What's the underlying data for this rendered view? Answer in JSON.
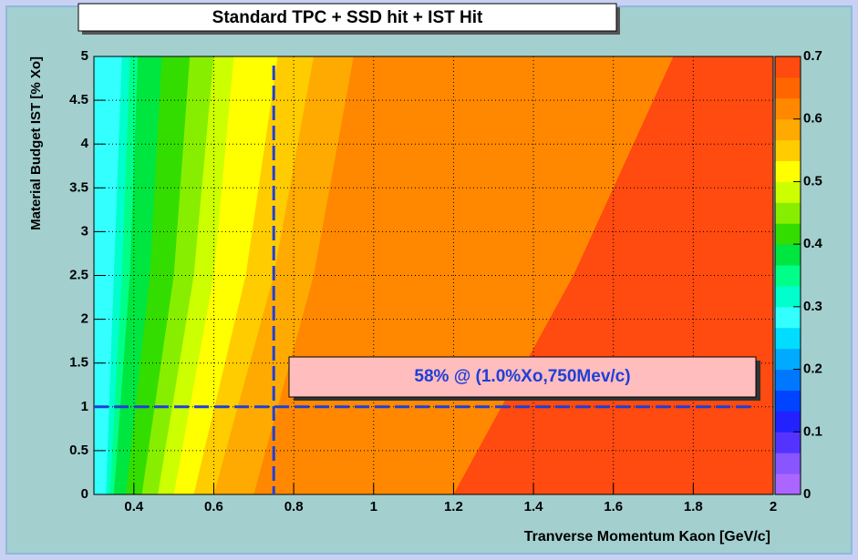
{
  "chart_data": {
    "type": "contour",
    "title": "Standard TPC + SSD hit + IST Hit",
    "x_label": "Tranverse Momentum Kaon [GeV/c]",
    "y_label": "Material Budget IST [% Xo]",
    "annotation": "58% @ (1.0%Xo,750Mev/c)",
    "xlim": [
      0.3,
      2
    ],
    "xticks": [
      0.4,
      0.6,
      0.8,
      1,
      1.2,
      1.4,
      1.6,
      1.8,
      2
    ],
    "ylim": [
      0,
      5
    ],
    "yticks": [
      0,
      0.5,
      1,
      1.5,
      2,
      2.5,
      3,
      3.5,
      4,
      4.5,
      5
    ],
    "grid": true,
    "marker": {
      "x": 0.75,
      "y": 1.0,
      "color": "#1f3fd8"
    },
    "band_y": [
      0,
      2.5,
      5
    ],
    "bands": [
      {
        "level": 0.2,
        "color": "#33ffff",
        "x": [
          0.33,
          0.35,
          0.37
        ]
      },
      {
        "level": 0.25,
        "color": "#00ffcc",
        "x": [
          0.34,
          0.37,
          0.39
        ]
      },
      {
        "level": 0.3,
        "color": "#00ff88",
        "x": [
          0.35,
          0.39,
          0.41
        ]
      },
      {
        "level": 0.35,
        "color": "#00e640",
        "x": [
          0.38,
          0.44,
          0.47
        ]
      },
      {
        "level": 0.4,
        "color": "#33dd00",
        "x": [
          0.42,
          0.5,
          0.54
        ]
      },
      {
        "level": 0.45,
        "color": "#88ee00",
        "x": [
          0.46,
          0.55,
          0.6
        ]
      },
      {
        "level": 0.5,
        "color": "#ccff00",
        "x": [
          0.5,
          0.6,
          0.65
        ]
      },
      {
        "level": 0.52,
        "color": "#ffff00",
        "x": [
          0.55,
          0.68,
          0.76
        ]
      },
      {
        "level": 0.55,
        "color": "#ffcc00",
        "x": [
          0.6,
          0.75,
          0.85
        ]
      },
      {
        "level": 0.58,
        "color": "#ffaa00",
        "x": [
          0.7,
          0.85,
          0.95
        ]
      },
      {
        "level": 0.62,
        "color": "#ff8800",
        "x": [
          1.2,
          1.5,
          1.75
        ]
      },
      {
        "level": 0.67,
        "color": "#ff4a10"
      }
    ],
    "colorbar": {
      "lim": [
        0,
        0.7
      ],
      "ticks": [
        0,
        0.1,
        0.2,
        0.3,
        0.4,
        0.5,
        0.6,
        0.7
      ],
      "colors": [
        "#aa66ff",
        "#8855ff",
        "#5533ff",
        "#2222ff",
        "#0044ff",
        "#0077ff",
        "#00aaff",
        "#00ddff",
        "#33ffff",
        "#00ffcc",
        "#00ff88",
        "#00e640",
        "#33dd00",
        "#88ee00",
        "#ccff00",
        "#ffff00",
        "#ffcc00",
        "#ffaa00",
        "#ff8800",
        "#ff6600",
        "#ff4a10"
      ]
    }
  }
}
